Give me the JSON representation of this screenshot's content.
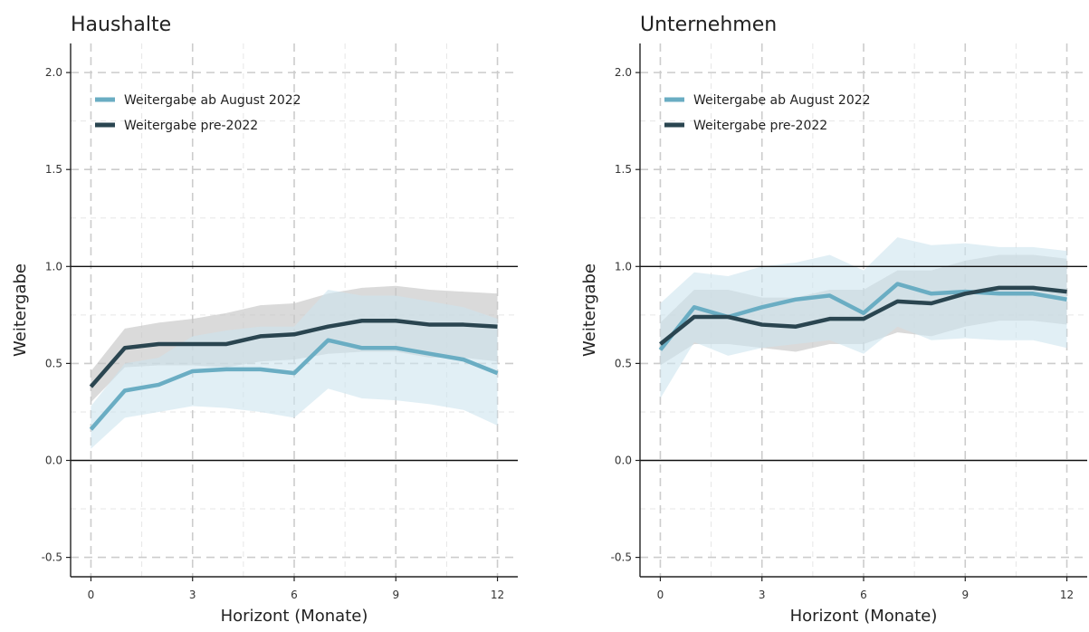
{
  "chart_data": [
    {
      "type": "line",
      "title": "Haushalte",
      "xlabel": "Horizont (Monate)",
      "ylabel": "Weitergabe",
      "xlim": [
        -0.6,
        12.6
      ],
      "ylim": [
        -0.6,
        2.15
      ],
      "xticks": [
        0,
        3,
        6,
        9,
        12
      ],
      "yticks": [
        -0.5,
        0.0,
        0.5,
        1.0,
        1.5,
        2.0
      ],
      "ytick_labels": [
        "-0.5",
        "0.0",
        "0.5",
        "1.0",
        "1.5",
        "2.0"
      ],
      "reference_lines": [
        0.0,
        1.0
      ],
      "grid": true,
      "legend_position": "top-left",
      "x": [
        0,
        1,
        2,
        3,
        4,
        5,
        6,
        7,
        8,
        9,
        10,
        11,
        12
      ],
      "series": [
        {
          "name": "Weitergabe ab August 2022",
          "color": "#6aadc3",
          "band_color": "#cde5ee",
          "values": [
            0.16,
            0.36,
            0.39,
            0.46,
            0.47,
            0.47,
            0.45,
            0.62,
            0.58,
            0.58,
            0.55,
            0.52,
            0.45
          ],
          "lower": [
            0.06,
            0.22,
            0.25,
            0.28,
            0.27,
            0.25,
            0.22,
            0.37,
            0.32,
            0.31,
            0.29,
            0.26,
            0.18
          ],
          "upper": [
            0.28,
            0.5,
            0.53,
            0.64,
            0.67,
            0.69,
            0.69,
            0.88,
            0.85,
            0.85,
            0.82,
            0.79,
            0.73
          ]
        },
        {
          "name": "Weitergabe pre-2022",
          "color": "#2a4550",
          "band_color": "#c6c6c6",
          "values": [
            0.38,
            0.58,
            0.6,
            0.6,
            0.6,
            0.64,
            0.65,
            0.69,
            0.72,
            0.72,
            0.7,
            0.7,
            0.69
          ],
          "lower": [
            0.3,
            0.48,
            0.49,
            0.49,
            0.48,
            0.51,
            0.52,
            0.55,
            0.56,
            0.56,
            0.53,
            0.53,
            0.51
          ],
          "upper": [
            0.46,
            0.68,
            0.71,
            0.73,
            0.76,
            0.8,
            0.81,
            0.86,
            0.89,
            0.9,
            0.88,
            0.87,
            0.86
          ]
        }
      ]
    },
    {
      "type": "line",
      "title": "Unternehmen",
      "xlabel": "Horizont (Monate)",
      "ylabel": "Weitergabe",
      "xlim": [
        -0.6,
        12.6
      ],
      "ylim": [
        -0.6,
        2.15
      ],
      "xticks": [
        0,
        3,
        6,
        9,
        12
      ],
      "yticks": [
        -0.5,
        0.0,
        0.5,
        1.0,
        1.5,
        2.0
      ],
      "ytick_labels": [
        "-0.5",
        "0.0",
        "0.5",
        "1.0",
        "1.5",
        "2.0"
      ],
      "reference_lines": [
        0.0,
        1.0
      ],
      "grid": true,
      "legend_position": "top-left",
      "x": [
        0,
        1,
        2,
        3,
        4,
        5,
        6,
        7,
        8,
        9,
        10,
        11,
        12
      ],
      "series": [
        {
          "name": "Weitergabe ab August 2022",
          "color": "#6aadc3",
          "band_color": "#cde5ee",
          "values": [
            0.57,
            0.79,
            0.74,
            0.79,
            0.83,
            0.85,
            0.76,
            0.91,
            0.86,
            0.87,
            0.86,
            0.86,
            0.83
          ],
          "lower": [
            0.32,
            0.61,
            0.54,
            0.58,
            0.6,
            0.62,
            0.55,
            0.69,
            0.62,
            0.63,
            0.62,
            0.62,
            0.58
          ],
          "upper": [
            0.81,
            0.97,
            0.95,
            1.0,
            1.02,
            1.06,
            0.98,
            1.15,
            1.11,
            1.12,
            1.1,
            1.1,
            1.08
          ]
        },
        {
          "name": "Weitergabe pre-2022",
          "color": "#2a4550",
          "band_color": "#c6c6c6",
          "values": [
            0.6,
            0.74,
            0.74,
            0.7,
            0.69,
            0.73,
            0.73,
            0.82,
            0.81,
            0.86,
            0.89,
            0.89,
            0.87
          ],
          "lower": [
            0.49,
            0.6,
            0.6,
            0.58,
            0.56,
            0.6,
            0.6,
            0.66,
            0.64,
            0.69,
            0.72,
            0.72,
            0.7
          ],
          "upper": [
            0.71,
            0.88,
            0.88,
            0.84,
            0.84,
            0.88,
            0.88,
            0.98,
            0.98,
            1.03,
            1.06,
            1.06,
            1.04
          ]
        }
      ]
    }
  ]
}
